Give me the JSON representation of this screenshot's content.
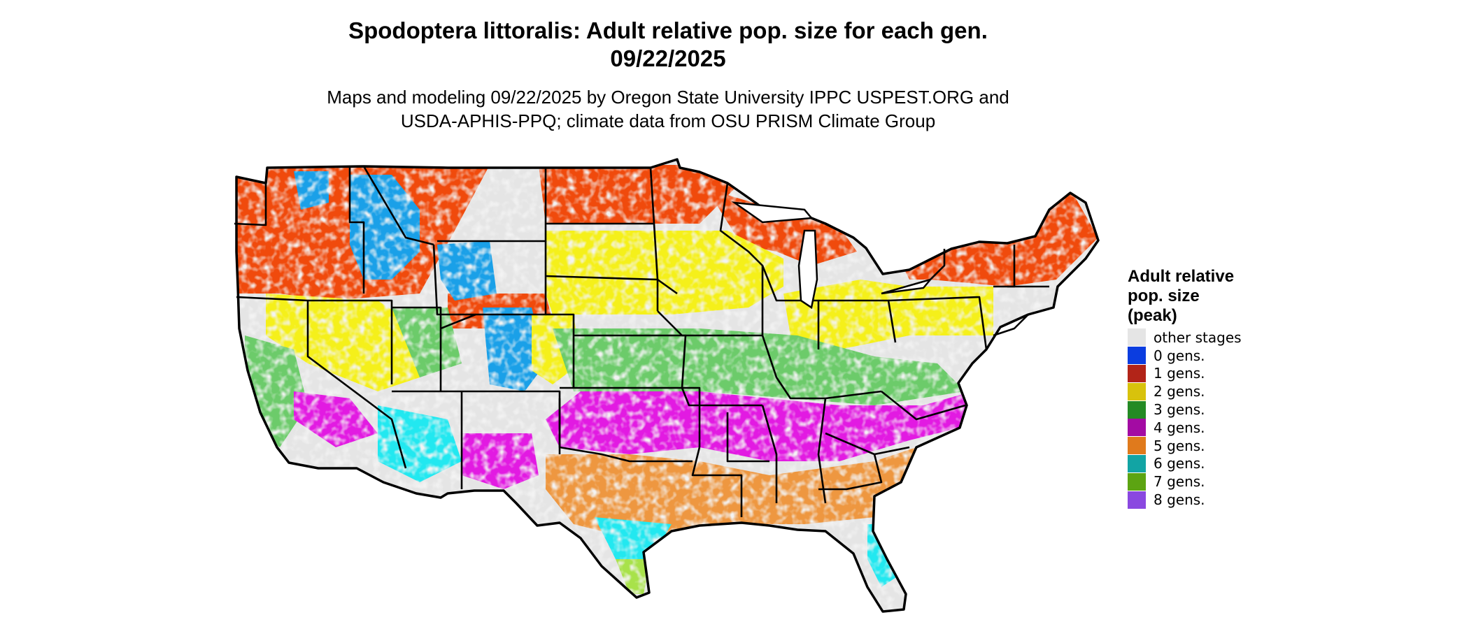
{
  "title": {
    "line1": "Spodoptera littoralis: Adult relative pop. size for each gen.",
    "line2": "09/22/2025"
  },
  "subtitle": {
    "line1": "Maps and modeling 09/22/2025 by Oregon State University IPPC USPEST.ORG and",
    "line2": "USDA-APHIS-PPQ; climate data from OSU PRISM Climate Group"
  },
  "legend": {
    "title_lines": [
      "Adult relative",
      "pop. size",
      "(peak)"
    ],
    "items": [
      {
        "label": "other stages",
        "color": "#e5e5e5"
      },
      {
        "label": "0 gens.",
        "color": "#0b3de0"
      },
      {
        "label": "1 gens.",
        "color": "#b22418"
      },
      {
        "label": "2 gens.",
        "color": "#d8c20c"
      },
      {
        "label": "3 gens.",
        "color": "#248a24"
      },
      {
        "label": "4 gens.",
        "color": "#a30ba3"
      },
      {
        "label": "5 gens.",
        "color": "#e07a1c"
      },
      {
        "label": "6 gens.",
        "color": "#12a4a4"
      },
      {
        "label": "7 gens.",
        "color": "#5ca412"
      },
      {
        "label": "8 gens.",
        "color": "#8a48e0"
      }
    ]
  },
  "map_colors": {
    "background": "#e5e5e5",
    "red_orange": "#f04a0c",
    "blue": "#1aa0e8",
    "yellow": "#f5f01a",
    "green": "#6ccb6a",
    "magenta": "#e21ae2",
    "orange": "#ee9740",
    "cyan": "#22e8f0",
    "lime": "#a8e24a",
    "border": "#000000"
  }
}
